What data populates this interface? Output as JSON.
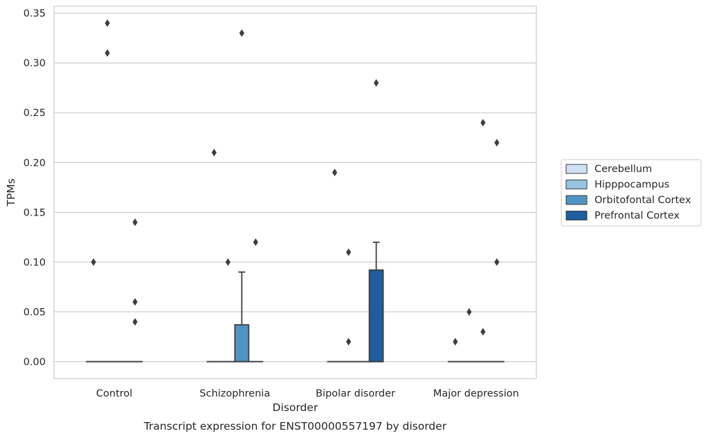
{
  "caption": "Transcript expression for ENST00000557197 by disorder",
  "chart_data": {
    "type": "box",
    "xlabel": "Disorder",
    "ylabel": "TPMs",
    "ylim": [
      -0.017,
      0.357
    ],
    "yticks": [
      0.0,
      0.05,
      0.1,
      0.15,
      0.2,
      0.25,
      0.3,
      0.35
    ],
    "ytick_labels": [
      "0.00",
      "0.05",
      "0.10",
      "0.15",
      "0.20",
      "0.25",
      "0.30",
      "0.35"
    ],
    "grid": "horizontal",
    "legend_position": "right",
    "categories": [
      "Control",
      "Schizophrenia",
      "Bipolar disorder",
      "Major depression"
    ],
    "series": [
      {
        "name": "Cerebellum",
        "color": "#d0e1f2",
        "boxes": [
          {
            "category": "Control",
            "q1": 0,
            "median": 0,
            "q3": 0,
            "whisker_low": 0,
            "whisker_high": 0,
            "outliers": [
              0.1
            ]
          },
          {
            "category": "Schizophrenia",
            "q1": 0,
            "median": 0,
            "q3": 0,
            "whisker_low": 0,
            "whisker_high": 0,
            "outliers": [
              0.21
            ]
          },
          {
            "category": "Bipolar disorder",
            "q1": 0,
            "median": 0,
            "q3": 0,
            "whisker_low": 0,
            "whisker_high": 0,
            "outliers": [
              0.19
            ]
          },
          {
            "category": "Major depression",
            "q1": 0,
            "median": 0,
            "q3": 0,
            "whisker_low": 0,
            "whisker_high": 0,
            "outliers": [
              0.02
            ]
          }
        ]
      },
      {
        "name": "Hipppocampus",
        "color": "#94c4df",
        "boxes": [
          {
            "category": "Control",
            "q1": 0,
            "median": 0,
            "q3": 0,
            "whisker_low": 0,
            "whisker_high": 0,
            "outliers": [
              0.34,
              0.31
            ]
          },
          {
            "category": "Schizophrenia",
            "q1": 0,
            "median": 0,
            "q3": 0,
            "whisker_low": 0,
            "whisker_high": 0,
            "outliers": [
              0.1
            ]
          },
          {
            "category": "Bipolar disorder",
            "q1": 0,
            "median": 0,
            "q3": 0,
            "whisker_low": 0,
            "whisker_high": 0,
            "outliers": [
              0.11,
              0.02
            ]
          },
          {
            "category": "Major depression",
            "q1": 0,
            "median": 0,
            "q3": 0,
            "whisker_low": 0,
            "whisker_high": 0,
            "outliers": [
              0.05
            ]
          }
        ]
      },
      {
        "name": "Orbitofontal Cortex",
        "color": "#5193c4",
        "boxes": [
          {
            "category": "Control",
            "q1": 0,
            "median": 0,
            "q3": 0,
            "whisker_low": 0,
            "whisker_high": 0,
            "outliers": []
          },
          {
            "category": "Schizophrenia",
            "q1": 0,
            "median": 0,
            "q3": 0.037,
            "whisker_low": 0,
            "whisker_high": 0.09,
            "outliers": [
              0.33
            ]
          },
          {
            "category": "Bipolar disorder",
            "q1": 0,
            "median": 0,
            "q3": 0,
            "whisker_low": 0,
            "whisker_high": 0,
            "outliers": []
          },
          {
            "category": "Major depression",
            "q1": 0,
            "median": 0,
            "q3": 0,
            "whisker_low": 0,
            "whisker_high": 0,
            "outliers": [
              0.24,
              0.03
            ]
          }
        ]
      },
      {
        "name": "Prefrontal Cortex",
        "color": "#1f5d9e",
        "boxes": [
          {
            "category": "Control",
            "q1": 0,
            "median": 0,
            "q3": 0,
            "whisker_low": 0,
            "whisker_high": 0,
            "outliers": [
              0.14,
              0.06,
              0.04
            ]
          },
          {
            "category": "Schizophrenia",
            "q1": 0,
            "median": 0,
            "q3": 0,
            "whisker_low": 0,
            "whisker_high": 0,
            "outliers": [
              0.12
            ]
          },
          {
            "category": "Bipolar disorder",
            "q1": 0,
            "median": 0,
            "q3": 0.092,
            "whisker_low": 0,
            "whisker_high": 0.12,
            "outliers": [
              0.28
            ]
          },
          {
            "category": "Major depression",
            "q1": 0,
            "median": 0,
            "q3": 0,
            "whisker_low": 0,
            "whisker_high": 0,
            "outliers": [
              0.22,
              0.1
            ]
          }
        ]
      }
    ]
  }
}
